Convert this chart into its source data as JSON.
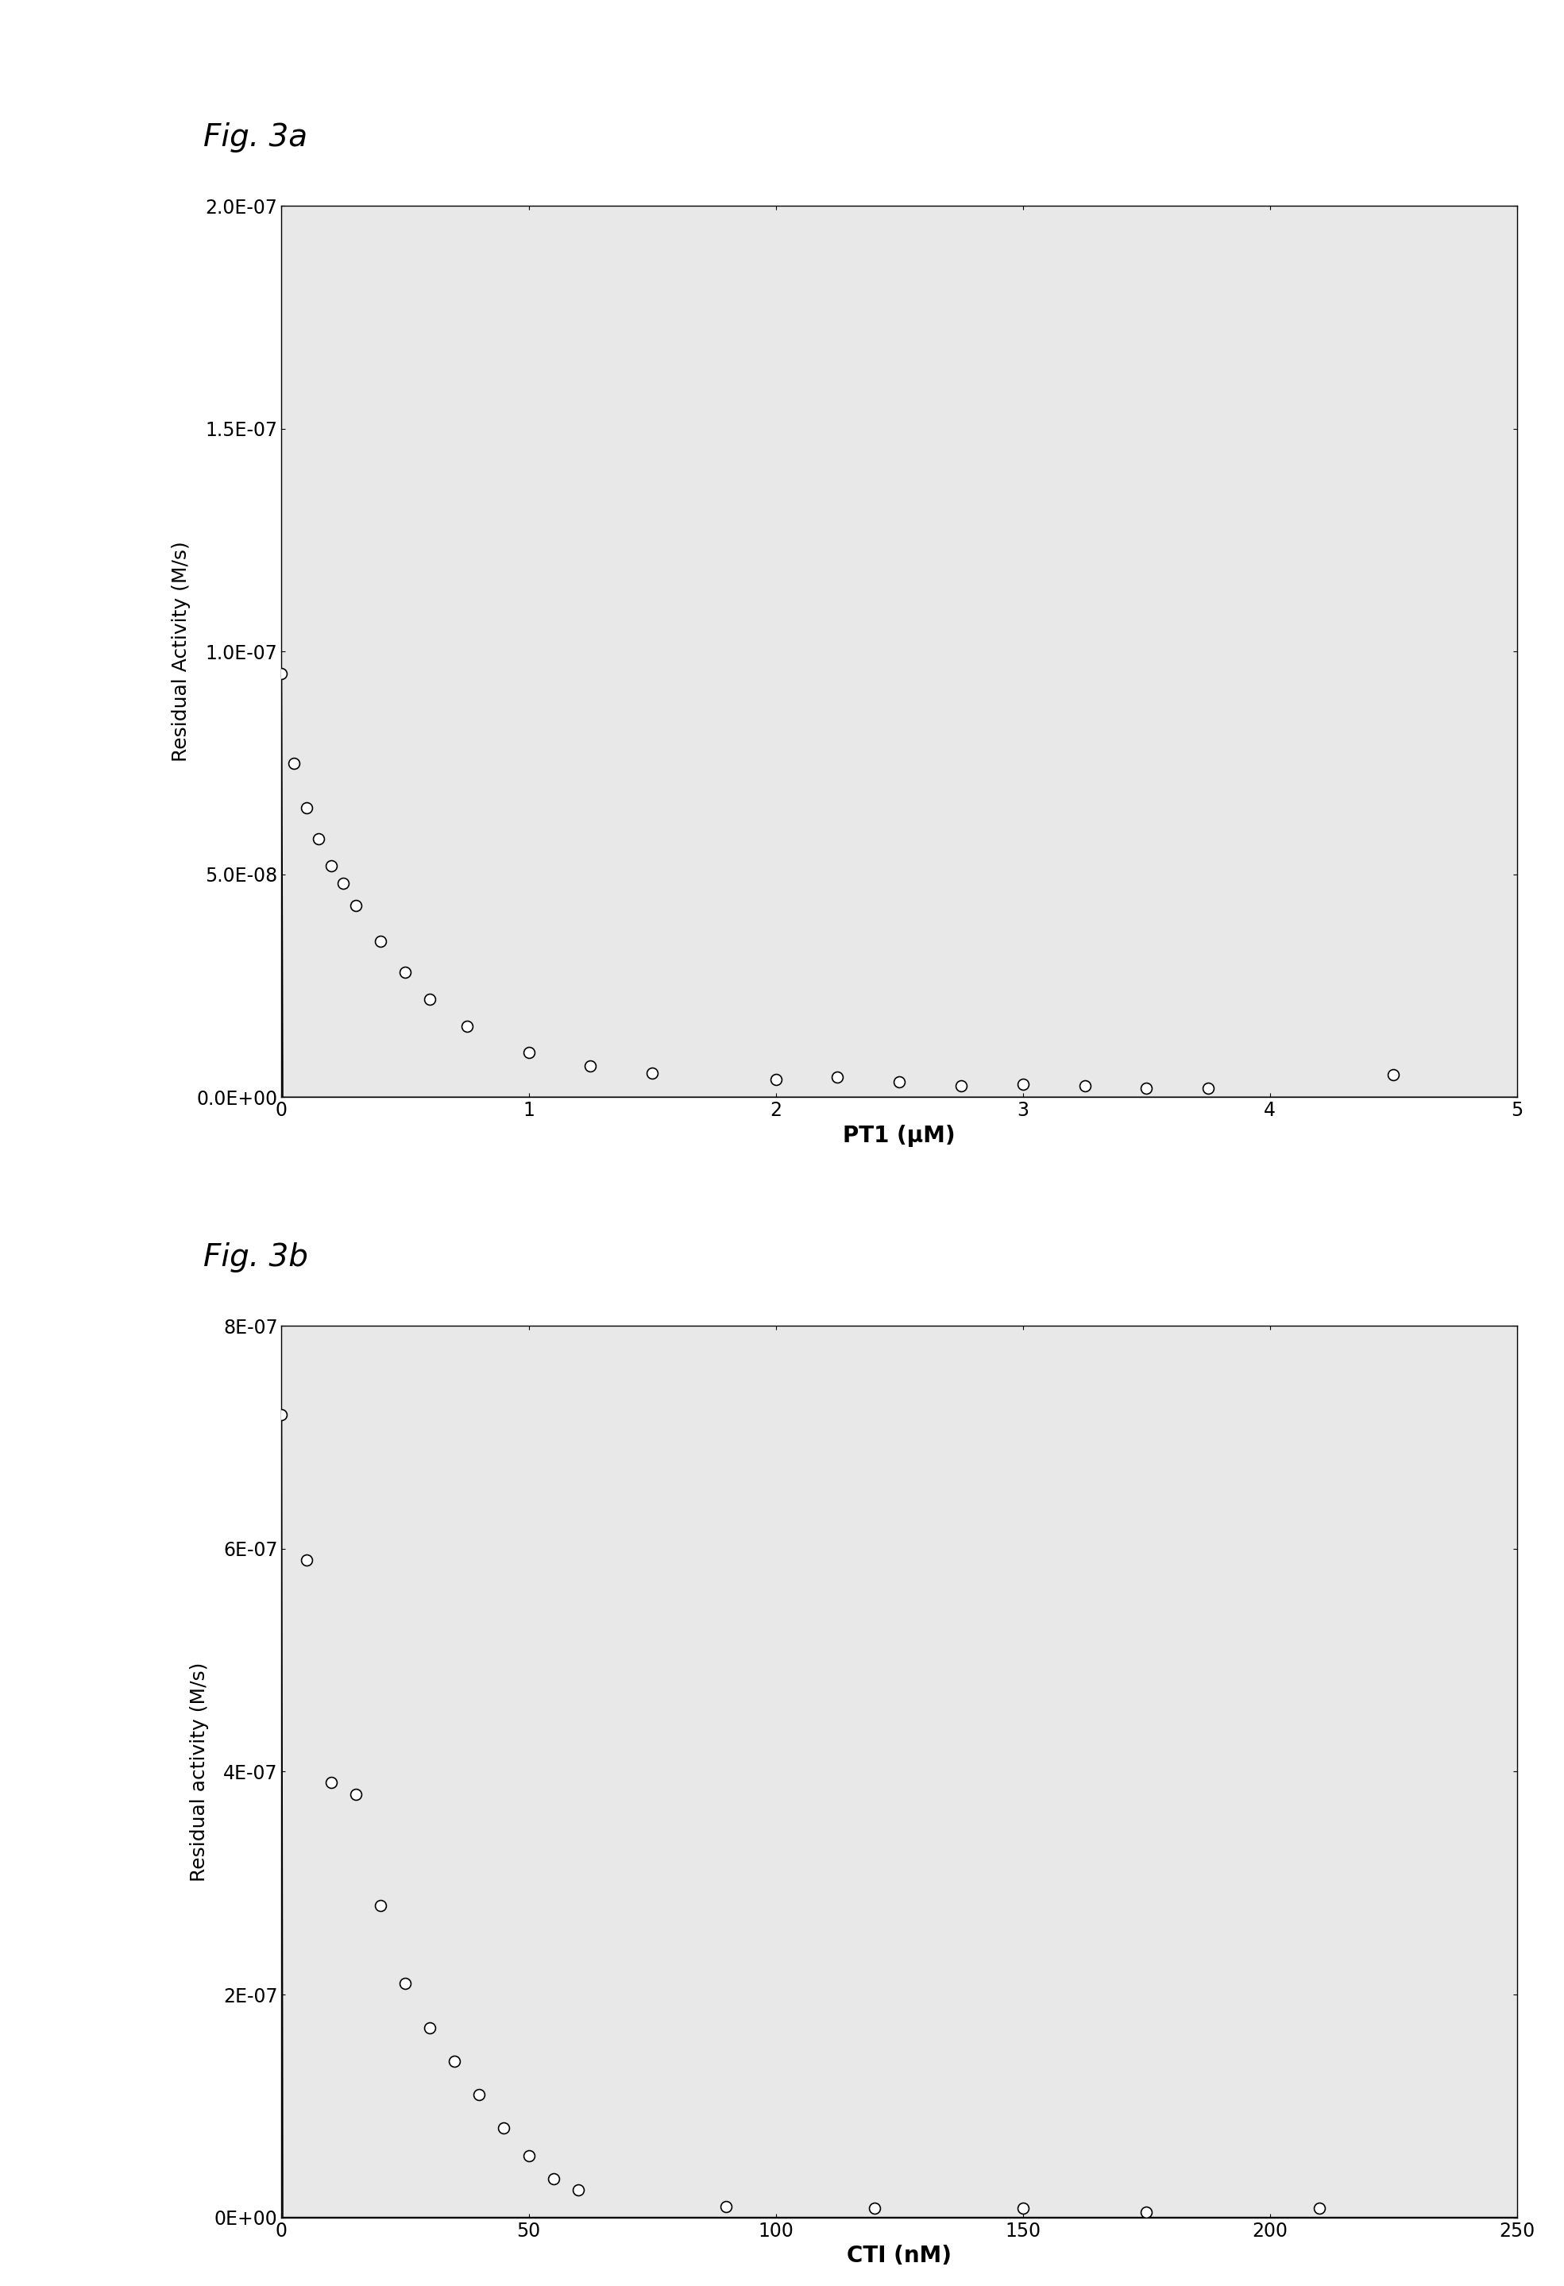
{
  "fig3a": {
    "title": "Fig. 3a",
    "xlabel": "PT1 (μM)",
    "ylabel": "Residual Activity (M/s)",
    "xlim": [
      0,
      5
    ],
    "ylim": [
      0,
      2e-07
    ],
    "xticks": [
      0,
      1,
      2,
      3,
      4,
      5
    ],
    "yticks": [
      0.0,
      5e-08,
      1e-07,
      1.5e-07,
      2e-07
    ],
    "ytick_labels": [
      "0.0E+00",
      "5.0E-08",
      "1.0E-07",
      "1.5E-07",
      "2.0E-07"
    ],
    "x_data": [
      0.0,
      0.05,
      0.1,
      0.15,
      0.2,
      0.25,
      0.3,
      0.4,
      0.5,
      0.6,
      0.75,
      1.0,
      1.25,
      1.5,
      2.0,
      2.25,
      2.5,
      2.75,
      3.0,
      3.25,
      3.5,
      3.75,
      4.5
    ],
    "y_data": [
      9.5e-08,
      7.5e-08,
      6.5e-08,
      5.8e-08,
      5.2e-08,
      4.8e-08,
      4.3e-08,
      3.5e-08,
      2.8e-08,
      2.2e-08,
      1.6e-08,
      1e-08,
      7e-09,
      5.5e-09,
      4e-09,
      4.5e-09,
      3.5e-09,
      2.5e-09,
      3e-09,
      2.5e-09,
      2e-09,
      2e-09,
      5e-09
    ],
    "Ki": 1.5e-07,
    "Vmax": 9.5e-08
  },
  "fig3b": {
    "title": "Fig. 3b",
    "xlabel": "CTI (nM)",
    "ylabel": "Residual activity (M/s)",
    "xlim": [
      0,
      250
    ],
    "ylim": [
      0,
      8e-07
    ],
    "xticks": [
      0,
      50,
      100,
      150,
      200,
      250
    ],
    "yticks": [
      0.0,
      2e-07,
      4e-07,
      6e-07,
      8e-07
    ],
    "ytick_labels": [
      "0E+00",
      "2E-07",
      "4E-07",
      "6E-07",
      "8E-07"
    ],
    "x_data": [
      0.0,
      5.0,
      10.0,
      15.0,
      20.0,
      25.0,
      30.0,
      35.0,
      40.0,
      45.0,
      50.0,
      55.0,
      60.0,
      90.0,
      120.0,
      150.0,
      175.0,
      210.0
    ],
    "y_data": [
      7.2e-07,
      5.9e-07,
      3.9e-07,
      3.8e-07,
      2.8e-07,
      2.1e-07,
      1.7e-07,
      1.4e-07,
      1.1e-07,
      8e-08,
      5.5e-08,
      3.5e-08,
      2.5e-08,
      1e-08,
      8e-09,
      8e-09,
      5e-09,
      8e-09
    ],
    "Ki": 8e-09,
    "Vmax": 7.2e-07
  },
  "background_color": "#d3d3d3",
  "plot_bg_color": "#e8e8e8",
  "marker_color": "white",
  "marker_edge_color": "black",
  "marker_size": 10,
  "line_color": "black",
  "line_width": 1.2,
  "title_fontsize": 28,
  "label_fontsize": 20,
  "tick_fontsize": 17
}
